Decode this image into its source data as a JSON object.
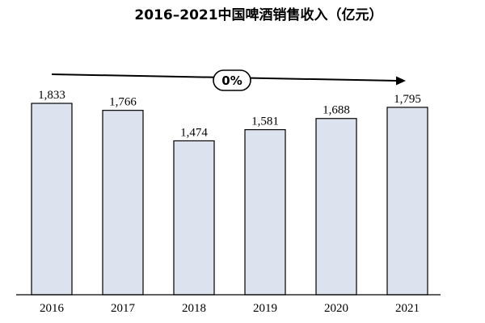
{
  "chart_data": {
    "type": "bar",
    "title": "2016–2021中国啤酒销售收入（亿元）",
    "categories": [
      "2016",
      "2017",
      "2018",
      "2019",
      "2020",
      "2021"
    ],
    "values": [
      1833,
      1766,
      1474,
      1581,
      1688,
      1795
    ],
    "value_labels": [
      "1,833",
      "1,766",
      "1,474",
      "1,581",
      "1,688",
      "1,795"
    ],
    "ylim": [
      0,
      2300
    ],
    "grid": false,
    "legend": "none",
    "annotation": {
      "label": "0%",
      "type": "trend-arrow",
      "from_category": "2016",
      "to_category": "2021"
    },
    "bar_color": "#dde3ee"
  }
}
